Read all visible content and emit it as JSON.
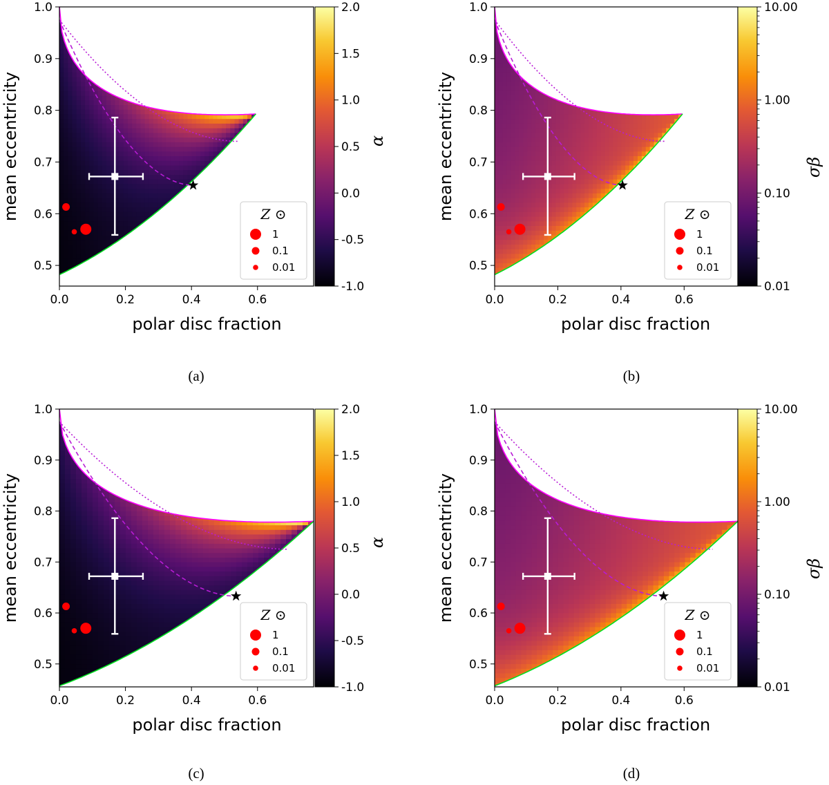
{
  "colors": {
    "upper_boundary": "#ff00ff",
    "lower_boundary": "#00e020",
    "model_curve": "#b81cd6",
    "red_points": "#ff0000",
    "errorbar": "#ffffff",
    "star": "#000000"
  },
  "chart_data": [
    {
      "type": "heatmap",
      "panel": "a",
      "caption": "(a)",
      "xlabel": "polar disc fraction",
      "ylabel": "mean eccentricity",
      "xlim": [
        0,
        0.77
      ],
      "ylim": [
        0.46,
        1.0
      ],
      "xticks": [
        "0.0",
        "0.2",
        "0.4",
        "0.6"
      ],
      "yticks": [
        "0.5",
        "0.6",
        "0.7",
        "0.8",
        "0.9",
        "1.0"
      ],
      "colorbar": {
        "label": "α",
        "scale": "linear",
        "range": [
          -1.0,
          2.0
        ],
        "ticks": [
          "-1.0",
          "-0.5",
          "0.0",
          "0.5",
          "1.0",
          "1.5",
          "2.0"
        ]
      },
      "region": {
        "x_end": 0.595,
        "lower_start": 0.482,
        "upper_end": 0.793
      },
      "star": [
        0.405,
        0.655
      ],
      "dashed_end": [
        0.405,
        0.655
      ],
      "dotted_end": [
        0.54,
        0.74
      ],
      "observation": {
        "x": 0.168,
        "y": 0.672,
        "xerr": [
          0.078,
          0.085
        ],
        "yerr": [
          0.113,
          0.114
        ]
      },
      "legend": {
        "title": "Z ⊙",
        "entries": [
          "1",
          "0.1",
          "0.01"
        ]
      },
      "red_points": [
        {
          "x": 0.02,
          "y": 0.613,
          "size": "0.1"
        },
        {
          "x": 0.045,
          "y": 0.565,
          "size": "0.01"
        },
        {
          "x": 0.08,
          "y": 0.57,
          "size": "1"
        }
      ]
    },
    {
      "type": "heatmap",
      "panel": "b",
      "caption": "(b)",
      "xlabel": "polar disc fraction",
      "ylabel": "mean eccentricity",
      "xlim": [
        0,
        0.77
      ],
      "ylim": [
        0.46,
        1.0
      ],
      "xticks": [
        "0.0",
        "0.2",
        "0.4",
        "0.6"
      ],
      "yticks": [
        "0.5",
        "0.6",
        "0.7",
        "0.8",
        "0.9",
        "1.0"
      ],
      "colorbar": {
        "label": "σβ",
        "scale": "log",
        "range": [
          0.01,
          10.0
        ],
        "ticks": [
          "0.01",
          "0.10",
          "1.00",
          "10.00"
        ]
      },
      "region": {
        "x_end": 0.595,
        "lower_start": 0.482,
        "upper_end": 0.793
      },
      "star": [
        0.405,
        0.655
      ],
      "dashed_end": [
        0.405,
        0.655
      ],
      "dotted_end": [
        0.54,
        0.74
      ],
      "observation": {
        "x": 0.168,
        "y": 0.672,
        "xerr": [
          0.078,
          0.085
        ],
        "yerr": [
          0.113,
          0.114
        ]
      },
      "legend": {
        "title": "Z ⊙",
        "entries": [
          "1",
          "0.1",
          "0.01"
        ]
      },
      "red_points": [
        {
          "x": 0.02,
          "y": 0.613,
          "size": "0.1"
        },
        {
          "x": 0.045,
          "y": 0.565,
          "size": "0.01"
        },
        {
          "x": 0.08,
          "y": 0.57,
          "size": "1"
        }
      ]
    },
    {
      "type": "heatmap",
      "panel": "c",
      "caption": "(c)",
      "xlabel": "polar disc fraction",
      "ylabel": "mean eccentricity",
      "xlim": [
        0,
        0.77
      ],
      "ylim": [
        0.455,
        1.0
      ],
      "xticks": [
        "0.0",
        "0.2",
        "0.4",
        "0.6"
      ],
      "yticks": [
        "0.5",
        "0.6",
        "0.7",
        "0.8",
        "0.9",
        "1.0"
      ],
      "colorbar": {
        "label": "α",
        "scale": "linear",
        "range": [
          -1.0,
          2.0
        ],
        "ticks": [
          "-1.0",
          "-0.5",
          "0.0",
          "0.5",
          "1.0",
          "1.5",
          "2.0"
        ]
      },
      "region": {
        "x_end": 0.77,
        "lower_start": 0.457,
        "upper_end": 0.78
      },
      "star": [
        0.535,
        0.633
      ],
      "dashed_end": [
        0.535,
        0.633
      ],
      "dotted_end": [
        0.69,
        0.725
      ],
      "observation": {
        "x": 0.168,
        "y": 0.672,
        "xerr": [
          0.078,
          0.085
        ],
        "yerr": [
          0.113,
          0.114
        ]
      },
      "legend": {
        "title": "Z ⊙",
        "entries": [
          "1",
          "0.1",
          "0.01"
        ]
      },
      "red_points": [
        {
          "x": 0.02,
          "y": 0.613,
          "size": "0.1"
        },
        {
          "x": 0.045,
          "y": 0.565,
          "size": "0.01"
        },
        {
          "x": 0.08,
          "y": 0.57,
          "size": "1"
        }
      ]
    },
    {
      "type": "heatmap",
      "panel": "d",
      "caption": "(d)",
      "xlabel": "polar disc fraction",
      "ylabel": "mean eccentricity",
      "xlim": [
        0,
        0.77
      ],
      "ylim": [
        0.455,
        1.0
      ],
      "xticks": [
        "0.0",
        "0.2",
        "0.4",
        "0.6"
      ],
      "yticks": [
        "0.5",
        "0.6",
        "0.7",
        "0.8",
        "0.9",
        "1.0"
      ],
      "colorbar": {
        "label": "σβ",
        "scale": "log",
        "range": [
          0.01,
          10.0
        ],
        "ticks": [
          "0.01",
          "0.10",
          "1.00",
          "10.00"
        ]
      },
      "region": {
        "x_end": 0.77,
        "lower_start": 0.457,
        "upper_end": 0.78
      },
      "star": [
        0.535,
        0.633
      ],
      "dashed_end": [
        0.535,
        0.633
      ],
      "dotted_end": [
        0.69,
        0.725
      ],
      "observation": {
        "x": 0.168,
        "y": 0.672,
        "xerr": [
          0.078,
          0.085
        ],
        "yerr": [
          0.113,
          0.114
        ]
      },
      "legend": {
        "title": "Z ⊙",
        "entries": [
          "1",
          "0.1",
          "0.01"
        ]
      },
      "red_points": [
        {
          "x": 0.02,
          "y": 0.613,
          "size": "0.1"
        },
        {
          "x": 0.045,
          "y": 0.565,
          "size": "0.01"
        },
        {
          "x": 0.08,
          "y": 0.57,
          "size": "1"
        }
      ]
    }
  ]
}
